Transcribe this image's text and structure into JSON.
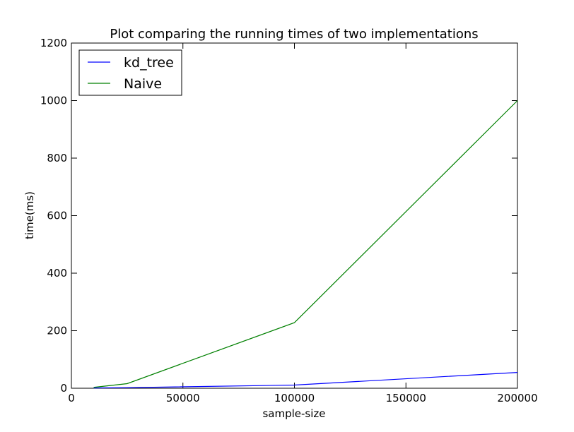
{
  "chart_data": {
    "type": "line",
    "title": "Plot comparing the running times of two implementations",
    "xlabel": "sample-size",
    "ylabel": "time(ms)",
    "xlim": [
      0,
      200000
    ],
    "ylim": [
      0,
      1200
    ],
    "xticks": [
      0,
      50000,
      100000,
      150000,
      200000
    ],
    "yticks": [
      0,
      200,
      400,
      600,
      800,
      1000,
      1200
    ],
    "grid": false,
    "legend_position": "top-left",
    "series": [
      {
        "name": "kd_tree",
        "color": "#0000ff",
        "x": [
          10000,
          25000,
          100000,
          200000
        ],
        "y": [
          1,
          2,
          11,
          55
        ]
      },
      {
        "name": "Naive",
        "color": "#008000",
        "x": [
          10000,
          25000,
          100000,
          200000
        ],
        "y": [
          3,
          16,
          228,
          1000
        ]
      }
    ]
  }
}
